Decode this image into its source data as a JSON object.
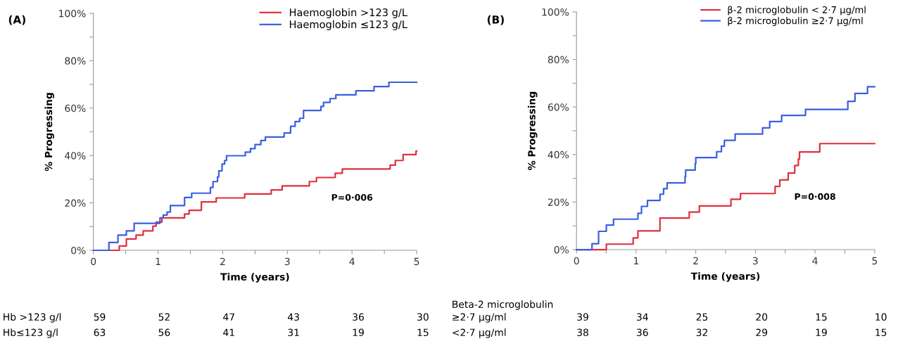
{
  "chart_data": [
    {
      "type": "step",
      "title": "(A)",
      "xlabel": "Time (years)",
      "ylabel": "% Progressing",
      "xlim": [
        0,
        5
      ],
      "xticks": [
        0,
        {
          "value": 0.5,
          "label": null
        },
        1,
        {
          "value": 1.5,
          "label": null
        },
        2,
        {
          "value": 2.5,
          "label": null
        },
        3,
        {
          "value": 3.5,
          "label": null
        },
        4,
        {
          "value": 4.5,
          "label": null
        },
        5
      ],
      "ylim": [
        0,
        100
      ],
      "yticks": [
        {
          "value": 0,
          "label": "0%"
        },
        {
          "value": 10,
          "label": null
        },
        {
          "value": 20,
          "label": "20%"
        },
        {
          "value": 30,
          "label": null
        },
        {
          "value": 40,
          "label": "40%"
        },
        {
          "value": 50,
          "label": null
        },
        {
          "value": 60,
          "label": "60%"
        },
        {
          "value": 70,
          "label": null
        },
        {
          "value": 80,
          "label": "80%"
        },
        {
          "value": 90,
          "label": null
        },
        {
          "value": 100,
          "label": "100%"
        }
      ],
      "grid": false,
      "legend": "top right",
      "marker": "none",
      "line_style": "solid",
      "series": [
        {
          "name": "Haemoglobin >123 g/L",
          "color": "#e0303f",
          "x": [
            0.24,
            0.4,
            0.51,
            0.66,
            0.77,
            0.92,
            0.97,
            1.06,
            1.41,
            1.48,
            1.67,
            1.9,
            2.34,
            2.75,
            2.92,
            3.34,
            3.45,
            3.74,
            3.85,
            4.59,
            4.67,
            4.79,
            4.99,
            5
          ],
          "values": [
            0,
            1.8,
            4.8,
            6.4,
            8.2,
            10.2,
            11.9,
            13.7,
            15.3,
            16.9,
            20.4,
            22.1,
            23.8,
            25.5,
            27.2,
            29.0,
            30.7,
            32.5,
            34.3,
            35.9,
            37.9,
            40.4,
            41.9,
            41.9
          ]
        },
        {
          "name": "Haemoglobin ≤123 g/L",
          "color": "#3a5fe0",
          "x": [
            0,
            0.24,
            0.38,
            0.51,
            0.63,
            1.03,
            1.08,
            1.14,
            1.19,
            1.41,
            1.52,
            1.81,
            1.85,
            1.92,
            1.94,
            1.99,
            2.03,
            2.06,
            2.35,
            2.43,
            2.5,
            2.59,
            2.66,
            2.95,
            3.05,
            3.12,
            3.19,
            3.25,
            3.52,
            3.56,
            3.66,
            3.75,
            4.06,
            4.34,
            4.57,
            5
          ],
          "values": [
            0,
            3.3,
            6.4,
            8.2,
            11.4,
            13.7,
            14.9,
            16.1,
            18.9,
            22.3,
            24.1,
            26.5,
            29.0,
            31.0,
            33.5,
            36.4,
            37.9,
            39.9,
            41.4,
            42.9,
            44.6,
            46.3,
            47.8,
            49.5,
            52.3,
            54.3,
            55.7,
            59.0,
            60.7,
            62.4,
            64.0,
            65.6,
            67.3,
            69.1,
            70.9,
            70.9
          ]
        }
      ],
      "annotations": [
        "P=0·006",
        "Hb >123 g/l",
        "59",
        "52",
        "47",
        "43",
        "36",
        "30",
        "Hb≤123 g/l",
        "63",
        "56",
        "41",
        "31",
        "19",
        "15"
      ]
    },
    {
      "type": "step",
      "title": "(B)",
      "xlabel": "Time (years)",
      "ylabel": "% Progressing",
      "xlim": [
        0,
        5
      ],
      "xticks": [
        0,
        {
          "value": 0.5,
          "label": null
        },
        1,
        {
          "value": 1.5,
          "label": null
        },
        2,
        {
          "value": 2.5,
          "label": null
        },
        3,
        {
          "value": 3.5,
          "label": null
        },
        4,
        {
          "value": 4.5,
          "label": null
        },
        5
      ],
      "ylim": [
        0,
        100
      ],
      "yticks": [
        {
          "value": 0,
          "label": "0%"
        },
        {
          "value": 10,
          "label": null
        },
        {
          "value": 20,
          "label": "20%"
        },
        {
          "value": 30,
          "label": null
        },
        {
          "value": 40,
          "label": "40%"
        },
        {
          "value": 50,
          "label": null
        },
        {
          "value": 60,
          "label": "60%"
        },
        {
          "value": 70,
          "label": null
        },
        {
          "value": 80,
          "label": "80%"
        },
        {
          "value": 90,
          "label": null
        },
        {
          "value": 100,
          "label": "100%"
        }
      ],
      "grid": false,
      "legend": "top right",
      "marker": "none",
      "line_style": "solid",
      "series": [
        {
          "name": "β-2 microglobulin < 2·7 μg/ml",
          "color": "#e0303f",
          "x": [
            0,
            0.5,
            0.95,
            1.03,
            1.4,
            1.89,
            2.06,
            2.59,
            2.75,
            3.33,
            3.41,
            3.55,
            3.66,
            3.72,
            3.74,
            4.08,
            5
          ],
          "values": [
            0,
            2.3,
            4.9,
            7.9,
            13.3,
            15.8,
            18.4,
            21.2,
            23.6,
            26.6,
            29.3,
            32.2,
            35.4,
            38.1,
            41.1,
            44.6,
            44.6
          ]
        },
        {
          "name": "β-2 microglobulin ≥2·7 μg/ml",
          "color": "#3a5fe0",
          "x": [
            0,
            0.26,
            0.37,
            0.5,
            0.62,
            1.03,
            1.09,
            1.19,
            1.4,
            1.46,
            1.52,
            1.82,
            1.83,
            1.99,
            2.0,
            2.35,
            2.43,
            2.48,
            2.66,
            3.12,
            3.24,
            3.44,
            3.84,
            4.55,
            4.67,
            4.88,
            5
          ],
          "values": [
            0,
            2.5,
            7.7,
            10.3,
            12.8,
            15.3,
            18.2,
            20.7,
            23.3,
            25.6,
            28.1,
            30.8,
            33.5,
            36.2,
            38.7,
            41.2,
            43.5,
            46.0,
            48.6,
            51.2,
            53.9,
            56.5,
            59.0,
            62.4,
            65.7,
            68.5,
            68.5
          ]
        }
      ],
      "annotations": [
        "P=0·008",
        "Beta-2 microglobulin",
        "≥2·7 μg/ml",
        "39",
        "34",
        "25",
        "20",
        "15",
        "10",
        "<2·7 μg/ml",
        "38",
        "36",
        "32",
        "29",
        "19",
        "15"
      ]
    }
  ]
}
